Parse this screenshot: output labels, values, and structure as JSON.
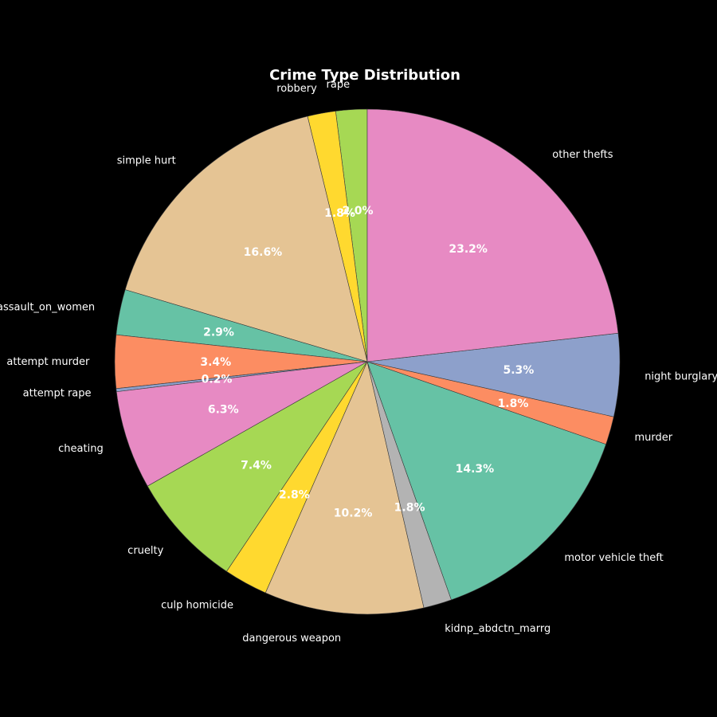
{
  "page": {
    "background": "#000000"
  },
  "chart_data": {
    "type": "pie",
    "title": "Crime Type Distribution",
    "start_angle_deg": 90,
    "direction": "counterclockwise",
    "slices": [
      {
        "label": "rape",
        "value": 2.0,
        "pct_label": "2.0%",
        "color": "#a6d854"
      },
      {
        "label": "robbery",
        "value": 1.8,
        "pct_label": "1.8%",
        "color": "#ffd92f"
      },
      {
        "label": "simple hurt",
        "value": 16.6,
        "pct_label": "16.6%",
        "color": "#e5c494"
      },
      {
        "label": "assault_on_women",
        "value": 2.9,
        "pct_label": "2.9%",
        "color": "#66c2a5"
      },
      {
        "label": "attempt murder",
        "value": 3.4,
        "pct_label": "3.4%",
        "color": "#fc8d62"
      },
      {
        "label": "attempt rape",
        "value": 0.2,
        "pct_label": "0.2%",
        "color": "#8da0cb"
      },
      {
        "label": "cheating",
        "value": 6.3,
        "pct_label": "6.3%",
        "color": "#e78ac3"
      },
      {
        "label": "cruelty",
        "value": 7.4,
        "pct_label": "7.4%",
        "color": "#a6d854"
      },
      {
        "label": "culp homicide",
        "value": 2.8,
        "pct_label": "2.8%",
        "color": "#ffd92f"
      },
      {
        "label": "dangerous weapon",
        "value": 10.2,
        "pct_label": "10.2%",
        "color": "#e5c494"
      },
      {
        "label": "kidnp_abdctn_marrg",
        "value": 1.8,
        "pct_label": "1.8%",
        "color": "#b3b3b3"
      },
      {
        "label": "motor vehicle theft",
        "value": 14.3,
        "pct_label": "14.3%",
        "color": "#66c2a5"
      },
      {
        "label": "murder",
        "value": 1.8,
        "pct_label": "1.8%",
        "color": "#fc8d62"
      },
      {
        "label": "night burglary",
        "value": 5.3,
        "pct_label": "5.3%",
        "color": "#8da0cb"
      },
      {
        "label": "other thefts",
        "value": 23.2,
        "pct_label": "23.2%",
        "color": "#e78ac3"
      }
    ]
  }
}
